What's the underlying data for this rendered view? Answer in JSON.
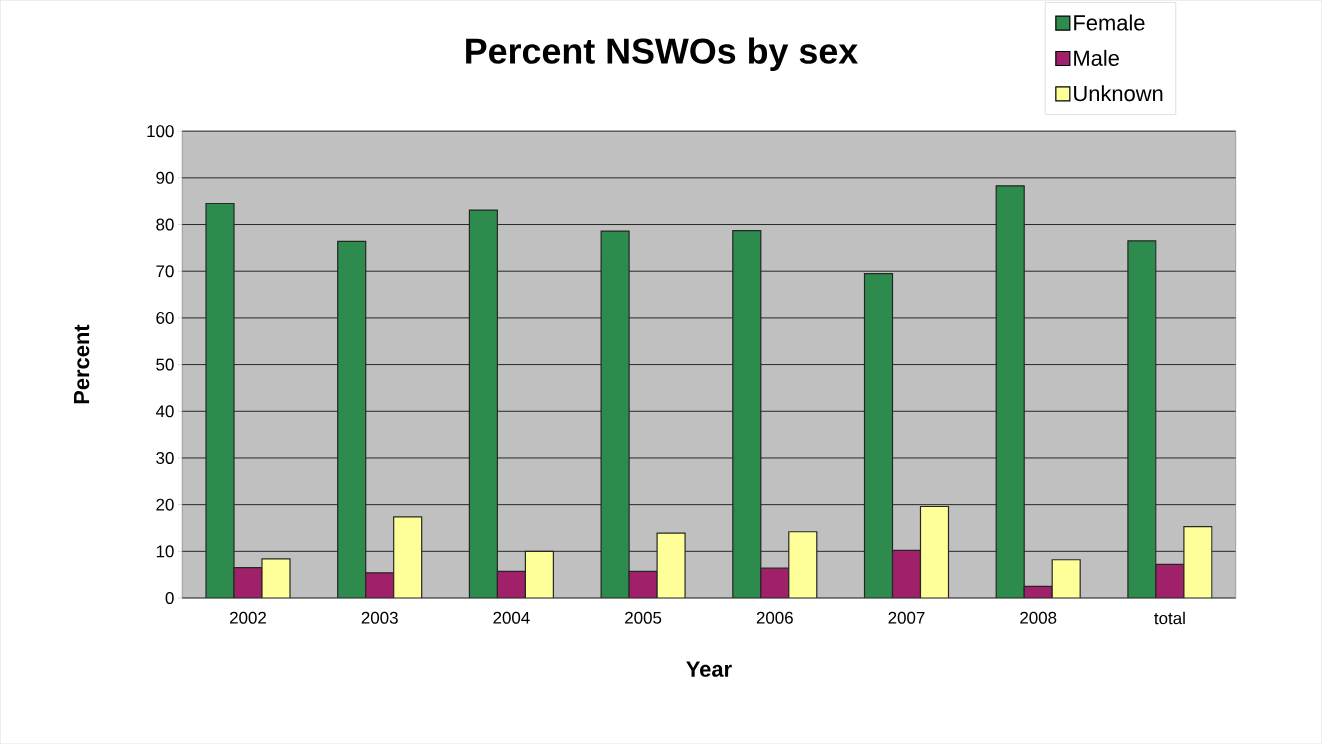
{
  "chart_data": {
    "type": "bar",
    "title": "Percent NSWOs by sex",
    "xlabel": "Year",
    "ylabel": "Percent",
    "categories": [
      "2002",
      "2003",
      "2004",
      "2005",
      "2006",
      "2007",
      "2008",
      "total"
    ],
    "series": [
      {
        "name": "Female",
        "color": "#2e8b4e",
        "values": [
          84.5,
          76.4,
          83.1,
          78.6,
          78.7,
          69.5,
          88.3,
          76.5
        ]
      },
      {
        "name": "Male",
        "color": "#a0206a",
        "values": [
          6.5,
          5.4,
          5.7,
          5.7,
          6.4,
          10.2,
          2.5,
          7.2
        ]
      },
      {
        "name": "Unknown",
        "color": "#ffff99",
        "values": [
          8.4,
          17.4,
          10.0,
          13.9,
          14.2,
          19.6,
          8.2,
          15.3
        ]
      }
    ],
    "ylim": [
      0,
      100
    ],
    "yticks": [
      0,
      10,
      20,
      30,
      40,
      50,
      60,
      70,
      80,
      90,
      100
    ],
    "grid": "y",
    "legend": "top right"
  }
}
